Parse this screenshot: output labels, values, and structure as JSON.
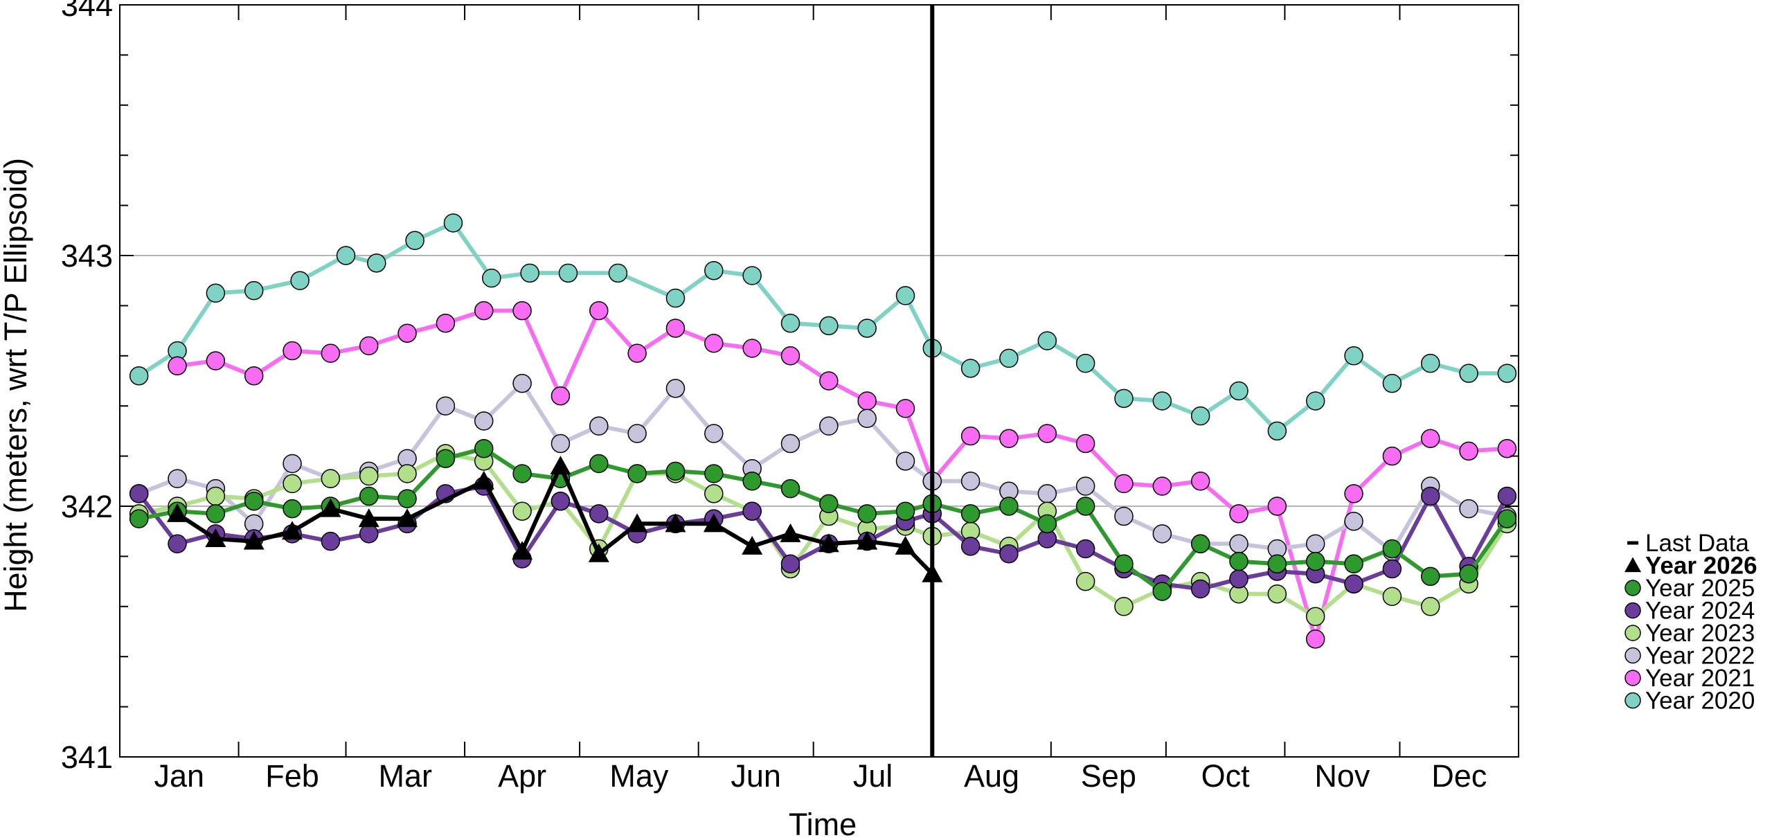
{
  "chart_data": {
    "type": "line",
    "title": "",
    "xlabel": "Time",
    "ylabel": "Height (meters, wrt T/P Ellipsoid)",
    "ylim": [
      341,
      344
    ],
    "xlim": [
      0,
      365
    ],
    "yticks": [
      "341",
      "342",
      "343",
      "344"
    ],
    "gridlines_y": [
      342,
      343
    ],
    "months": [
      "Jan",
      "Feb",
      "Mar",
      "Apr",
      "May",
      "Jun",
      "Jul",
      "Aug",
      "Sep",
      "Oct",
      "Nov",
      "Dec"
    ],
    "last_data_day": 212,
    "legend_position": "right",
    "legend": [
      {
        "label": "Last Data",
        "marker": "line",
        "color": "#000000",
        "bold": false
      },
      {
        "label": "Year 2026",
        "marker": "triangle",
        "color": "#000000",
        "bold": true
      },
      {
        "label": "Year 2025",
        "marker": "circle",
        "color": "#2e9a2e",
        "bold": false
      },
      {
        "label": "Year 2024",
        "marker": "circle",
        "color": "#6a3d9a",
        "bold": false
      },
      {
        "label": "Year 2023",
        "marker": "circle",
        "color": "#b2df8a",
        "bold": false
      },
      {
        "label": "Year 2022",
        "marker": "circle",
        "color": "#c7c3dc",
        "bold": false
      },
      {
        "label": "Year 2021",
        "marker": "circle",
        "color": "#f76cf2",
        "bold": false
      },
      {
        "label": "Year 2020",
        "marker": "circle",
        "color": "#7fd3c4",
        "bold": false
      }
    ],
    "series": [
      {
        "name": "Year 2020",
        "color": "#7fd3c4",
        "marker": "circle",
        "x": [
          5,
          15,
          25,
          35,
          47,
          59,
          67,
          77,
          87,
          97,
          107,
          117,
          130,
          145,
          155,
          165,
          175,
          185,
          195,
          205,
          212,
          222,
          232,
          242,
          252,
          262,
          272,
          282,
          292,
          302,
          312,
          322,
          332,
          342,
          352,
          362
        ],
        "y": [
          342.52,
          342.62,
          342.85,
          342.86,
          342.9,
          343.0,
          342.97,
          343.06,
          343.13,
          342.91,
          342.93,
          342.93,
          342.93,
          342.83,
          342.94,
          342.92,
          342.73,
          342.72,
          342.71,
          342.84,
          342.63,
          342.55,
          342.59,
          342.66,
          342.57,
          342.43,
          342.42,
          342.36,
          342.46,
          342.3,
          342.42,
          342.6,
          342.49,
          342.57,
          342.53,
          342.53
        ]
      },
      {
        "name": "Year 2021",
        "color": "#f76cf2",
        "marker": "circle",
        "x": [
          15,
          25,
          35,
          45,
          55,
          65,
          75,
          85,
          95,
          105,
          115,
          125,
          135,
          145,
          155,
          165,
          175,
          185,
          195,
          205,
          212,
          222,
          232,
          242,
          252,
          262,
          272,
          282,
          292,
          302,
          312,
          322,
          332,
          342,
          352,
          362
        ],
        "y": [
          342.56,
          342.58,
          342.52,
          342.62,
          342.61,
          342.64,
          342.69,
          342.73,
          342.78,
          342.78,
          342.44,
          342.78,
          342.61,
          342.71,
          342.65,
          342.63,
          342.6,
          342.5,
          342.42,
          342.39,
          342.1,
          342.28,
          342.27,
          342.29,
          342.25,
          342.09,
          342.08,
          342.1,
          341.97,
          342.0,
          341.47,
          342.05,
          342.2,
          342.27,
          342.22,
          342.23
        ]
      },
      {
        "name": "Year 2022",
        "color": "#c7c3dc",
        "marker": "circle",
        "x": [
          5,
          15,
          25,
          35,
          45,
          55,
          65,
          75,
          85,
          95,
          105,
          115,
          125,
          135,
          145,
          155,
          165,
          175,
          185,
          195,
          205,
          212,
          222,
          232,
          242,
          252,
          262,
          272,
          282,
          292,
          302,
          312,
          322,
          332,
          342,
          352,
          362
        ],
        "y": [
          342.05,
          342.11,
          342.07,
          341.93,
          342.17,
          342.11,
          342.14,
          342.19,
          342.4,
          342.34,
          342.49,
          342.25,
          342.32,
          342.29,
          342.47,
          342.29,
          342.15,
          342.25,
          342.32,
          342.35,
          342.18,
          342.1,
          342.1,
          342.06,
          342.05,
          342.08,
          341.96,
          341.89,
          341.85,
          341.85,
          341.83,
          341.85,
          341.94,
          341.82,
          342.08,
          341.99,
          341.96
        ]
      },
      {
        "name": "Year 2023",
        "color": "#b2df8a",
        "marker": "circle",
        "x": [
          5,
          15,
          25,
          35,
          45,
          55,
          65,
          75,
          85,
          95,
          105,
          115,
          125,
          135,
          145,
          155,
          165,
          175,
          185,
          195,
          205,
          212,
          222,
          232,
          242,
          252,
          262,
          272,
          282,
          292,
          302,
          312,
          322,
          332,
          342,
          352,
          362
        ],
        "y": [
          341.97,
          342.0,
          342.04,
          342.03,
          342.09,
          342.11,
          342.12,
          342.13,
          342.21,
          342.18,
          341.98,
          342.02,
          341.83,
          342.13,
          342.13,
          342.05,
          341.98,
          341.75,
          341.96,
          341.91,
          341.92,
          341.88,
          341.9,
          341.84,
          341.98,
          341.7,
          341.6,
          341.67,
          341.7,
          341.65,
          341.65,
          341.56,
          341.69,
          341.64,
          341.6,
          341.69,
          341.93
        ]
      },
      {
        "name": "Year 2024",
        "color": "#6a3d9a",
        "marker": "circle",
        "x": [
          5,
          15,
          25,
          35,
          45,
          55,
          65,
          75,
          85,
          95,
          105,
          115,
          125,
          135,
          145,
          155,
          165,
          175,
          185,
          195,
          205,
          212,
          222,
          232,
          242,
          252,
          262,
          272,
          282,
          292,
          302,
          312,
          322,
          332,
          342,
          352,
          362
        ],
        "y": [
          342.05,
          341.85,
          341.89,
          341.87,
          341.89,
          341.86,
          341.89,
          341.93,
          342.05,
          342.08,
          341.79,
          342.02,
          341.97,
          341.89,
          341.93,
          341.95,
          341.98,
          341.77,
          341.85,
          341.86,
          341.94,
          341.97,
          341.84,
          341.81,
          341.87,
          341.83,
          341.75,
          341.69,
          341.67,
          341.71,
          341.74,
          341.73,
          341.69,
          341.75,
          342.04,
          341.76,
          342.04
        ]
      },
      {
        "name": "Year 2025",
        "color": "#2e9a2e",
        "marker": "circle",
        "x": [
          5,
          15,
          25,
          35,
          45,
          55,
          65,
          75,
          85,
          95,
          105,
          115,
          125,
          135,
          145,
          155,
          165,
          175,
          185,
          195,
          205,
          212,
          222,
          232,
          242,
          252,
          262,
          272,
          282,
          292,
          302,
          312,
          322,
          332,
          342,
          352,
          362
        ],
        "y": [
          341.95,
          341.98,
          341.97,
          342.02,
          341.99,
          342.0,
          342.04,
          342.03,
          342.19,
          342.23,
          342.13,
          342.11,
          342.17,
          342.13,
          342.14,
          342.13,
          342.1,
          342.07,
          342.01,
          341.97,
          341.98,
          342.01,
          341.97,
          342.0,
          341.93,
          342.0,
          341.77,
          341.66,
          341.85,
          341.78,
          341.77,
          341.78,
          341.77,
          341.83,
          341.72,
          341.73,
          341.95
        ]
      },
      {
        "name": "Year 2026",
        "color": "#000000",
        "marker": "triangle",
        "x": [
          15,
          25,
          35,
          45,
          55,
          65,
          75,
          95,
          105,
          115,
          125,
          135,
          145,
          155,
          165,
          175,
          185,
          195,
          205,
          212
        ],
        "y": [
          341.97,
          341.87,
          341.86,
          341.9,
          341.99,
          341.95,
          341.95,
          342.1,
          341.82,
          342.16,
          341.81,
          341.93,
          341.93,
          341.93,
          341.84,
          341.89,
          341.85,
          341.86,
          341.84,
          341.73
        ]
      }
    ]
  }
}
